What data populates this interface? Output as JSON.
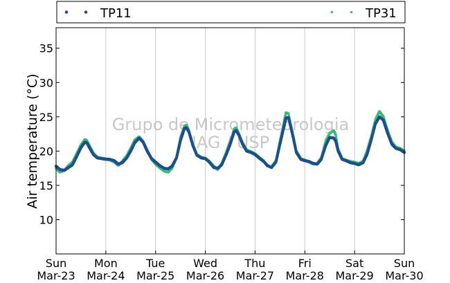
{
  "chart_data": {
    "type": "scatter",
    "title": "",
    "xlabel": "",
    "ylabel": "Air temperature (°C)",
    "ylim": [
      5,
      38
    ],
    "yticks": [
      10,
      15,
      20,
      25,
      30,
      35
    ],
    "grid": "vertical lines at day boundaries",
    "legend_position": "top (above plot)",
    "watermark": [
      "Grupo de Micrometeorologia",
      "IAG / USP"
    ],
    "x_ticks": [
      {
        "day": "Sun",
        "date": "Mar-23"
      },
      {
        "day": "Mon",
        "date": "Mar-24"
      },
      {
        "day": "Tue",
        "date": "Mar-25"
      },
      {
        "day": "Wed",
        "date": "Mar-26"
      },
      {
        "day": "Thu",
        "date": "Mar-27"
      },
      {
        "day": "Fri",
        "date": "Mar-28"
      },
      {
        "day": "Sat",
        "date": "Mar-29"
      },
      {
        "day": "Sun",
        "date": "Mar-30"
      }
    ],
    "x_unit": "days since Mar-23 00:00",
    "series": [
      {
        "name": "TP11",
        "color": "#1f4e8c",
        "marker": "dot",
        "x": [
          0,
          0.08,
          0.17,
          0.25,
          0.33,
          0.42,
          0.5,
          0.58,
          0.62,
          0.67,
          0.75,
          0.83,
          0.92,
          1,
          1.08,
          1.17,
          1.25,
          1.33,
          1.42,
          1.5,
          1.58,
          1.67,
          1.75,
          1.83,
          1.92,
          2,
          2.08,
          2.17,
          2.25,
          2.33,
          2.42,
          2.5,
          2.58,
          2.62,
          2.67,
          2.75,
          2.83,
          2.92,
          3,
          3.08,
          3.17,
          3.25,
          3.33,
          3.42,
          3.5,
          3.58,
          3.62,
          3.67,
          3.75,
          3.83,
          3.92,
          4,
          4.08,
          4.17,
          4.25,
          4.33,
          4.42,
          4.5,
          4.58,
          4.62,
          4.67,
          4.75,
          4.83,
          4.92,
          5,
          5.08,
          5.17,
          5.25,
          5.33,
          5.42,
          5.5,
          5.58,
          5.62,
          5.67,
          5.75,
          5.83,
          5.92,
          6,
          6.08,
          6.17,
          6.25,
          6.33,
          6.42,
          6.5,
          6.58,
          6.62,
          6.67,
          6.75,
          6.83,
          6.92,
          7
        ],
        "y": [
          17.8,
          17.3,
          17.2,
          17.6,
          18.0,
          19.3,
          20.5,
          21.3,
          21.2,
          20.5,
          19.5,
          19.0,
          18.9,
          18.8,
          18.8,
          18.6,
          18.1,
          18.3,
          19.0,
          20.0,
          21.2,
          21.9,
          21.3,
          20.0,
          18.9,
          18.4,
          17.9,
          17.5,
          17.4,
          17.8,
          19.0,
          21.5,
          23.3,
          23.4,
          22.8,
          20.8,
          19.4,
          19.0,
          18.9,
          18.4,
          17.6,
          17.5,
          18.0,
          19.5,
          21.0,
          22.8,
          23.0,
          22.4,
          21.0,
          20.0,
          19.8,
          19.5,
          19.0,
          18.5,
          17.9,
          17.6,
          18.4,
          21.0,
          23.5,
          24.8,
          24.9,
          22.5,
          19.8,
          18.8,
          18.6,
          18.5,
          18.2,
          18.1,
          18.8,
          20.8,
          22.0,
          21.9,
          21.5,
          20.0,
          18.8,
          18.6,
          18.3,
          18.2,
          18.0,
          18.3,
          19.5,
          21.5,
          24.0,
          25.0,
          24.5,
          23.6,
          22.5,
          21.0,
          20.4,
          20.2,
          19.8
        ]
      },
      {
        "name": "TP31",
        "color": "#3dbb78",
        "marker": "small square",
        "x": [
          0,
          0.08,
          0.17,
          0.25,
          0.33,
          0.42,
          0.5,
          0.58,
          0.62,
          0.67,
          0.75,
          0.83,
          0.92,
          1,
          1.08,
          1.17,
          1.25,
          1.33,
          1.42,
          1.5,
          1.58,
          1.67,
          1.75,
          1.83,
          1.92,
          2,
          2.08,
          2.17,
          2.25,
          2.33,
          2.42,
          2.5,
          2.58,
          2.62,
          2.67,
          2.75,
          2.83,
          2.92,
          3,
          3.08,
          3.17,
          3.25,
          3.33,
          3.42,
          3.5,
          3.58,
          3.62,
          3.67,
          3.75,
          3.83,
          3.92,
          4,
          4.08,
          4.17,
          4.25,
          4.33,
          4.42,
          4.5,
          4.58,
          4.62,
          4.67,
          4.75,
          4.83,
          4.92,
          5,
          5.08,
          5.17,
          5.25,
          5.33,
          5.42,
          5.5,
          5.58,
          5.62,
          5.67,
          5.75,
          5.83,
          5.92,
          6,
          6.08,
          6.17,
          6.25,
          6.33,
          6.42,
          6.5,
          6.58,
          6.62,
          6.67,
          6.75,
          6.83,
          6.92,
          7
        ],
        "y": [
          17.5,
          16.9,
          17.2,
          17.9,
          18.4,
          19.7,
          20.9,
          21.7,
          21.5,
          20.8,
          19.7,
          19.1,
          19.0,
          18.9,
          18.7,
          18.4,
          17.9,
          18.5,
          19.3,
          20.4,
          21.6,
          22.1,
          21.4,
          20.2,
          18.8,
          18.1,
          17.6,
          17.1,
          16.9,
          17.5,
          19.0,
          22.0,
          23.6,
          23.8,
          23.0,
          21.0,
          19.5,
          19.1,
          19.0,
          18.5,
          17.8,
          17.3,
          18.2,
          19.8,
          21.3,
          23.2,
          23.4,
          22.6,
          21.2,
          20.2,
          19.9,
          19.6,
          19.1,
          18.6,
          17.8,
          17.7,
          18.6,
          21.5,
          24.2,
          25.6,
          25.5,
          22.9,
          20.0,
          18.9,
          18.7,
          18.4,
          18.1,
          18.2,
          19.0,
          21.5,
          22.6,
          23.0,
          22.4,
          20.3,
          18.9,
          18.7,
          18.5,
          18.4,
          18.2,
          18.5,
          20.0,
          22.0,
          24.6,
          25.8,
          25.0,
          24.0,
          22.9,
          21.3,
          20.6,
          20.4,
          20.0
        ]
      }
    ]
  }
}
